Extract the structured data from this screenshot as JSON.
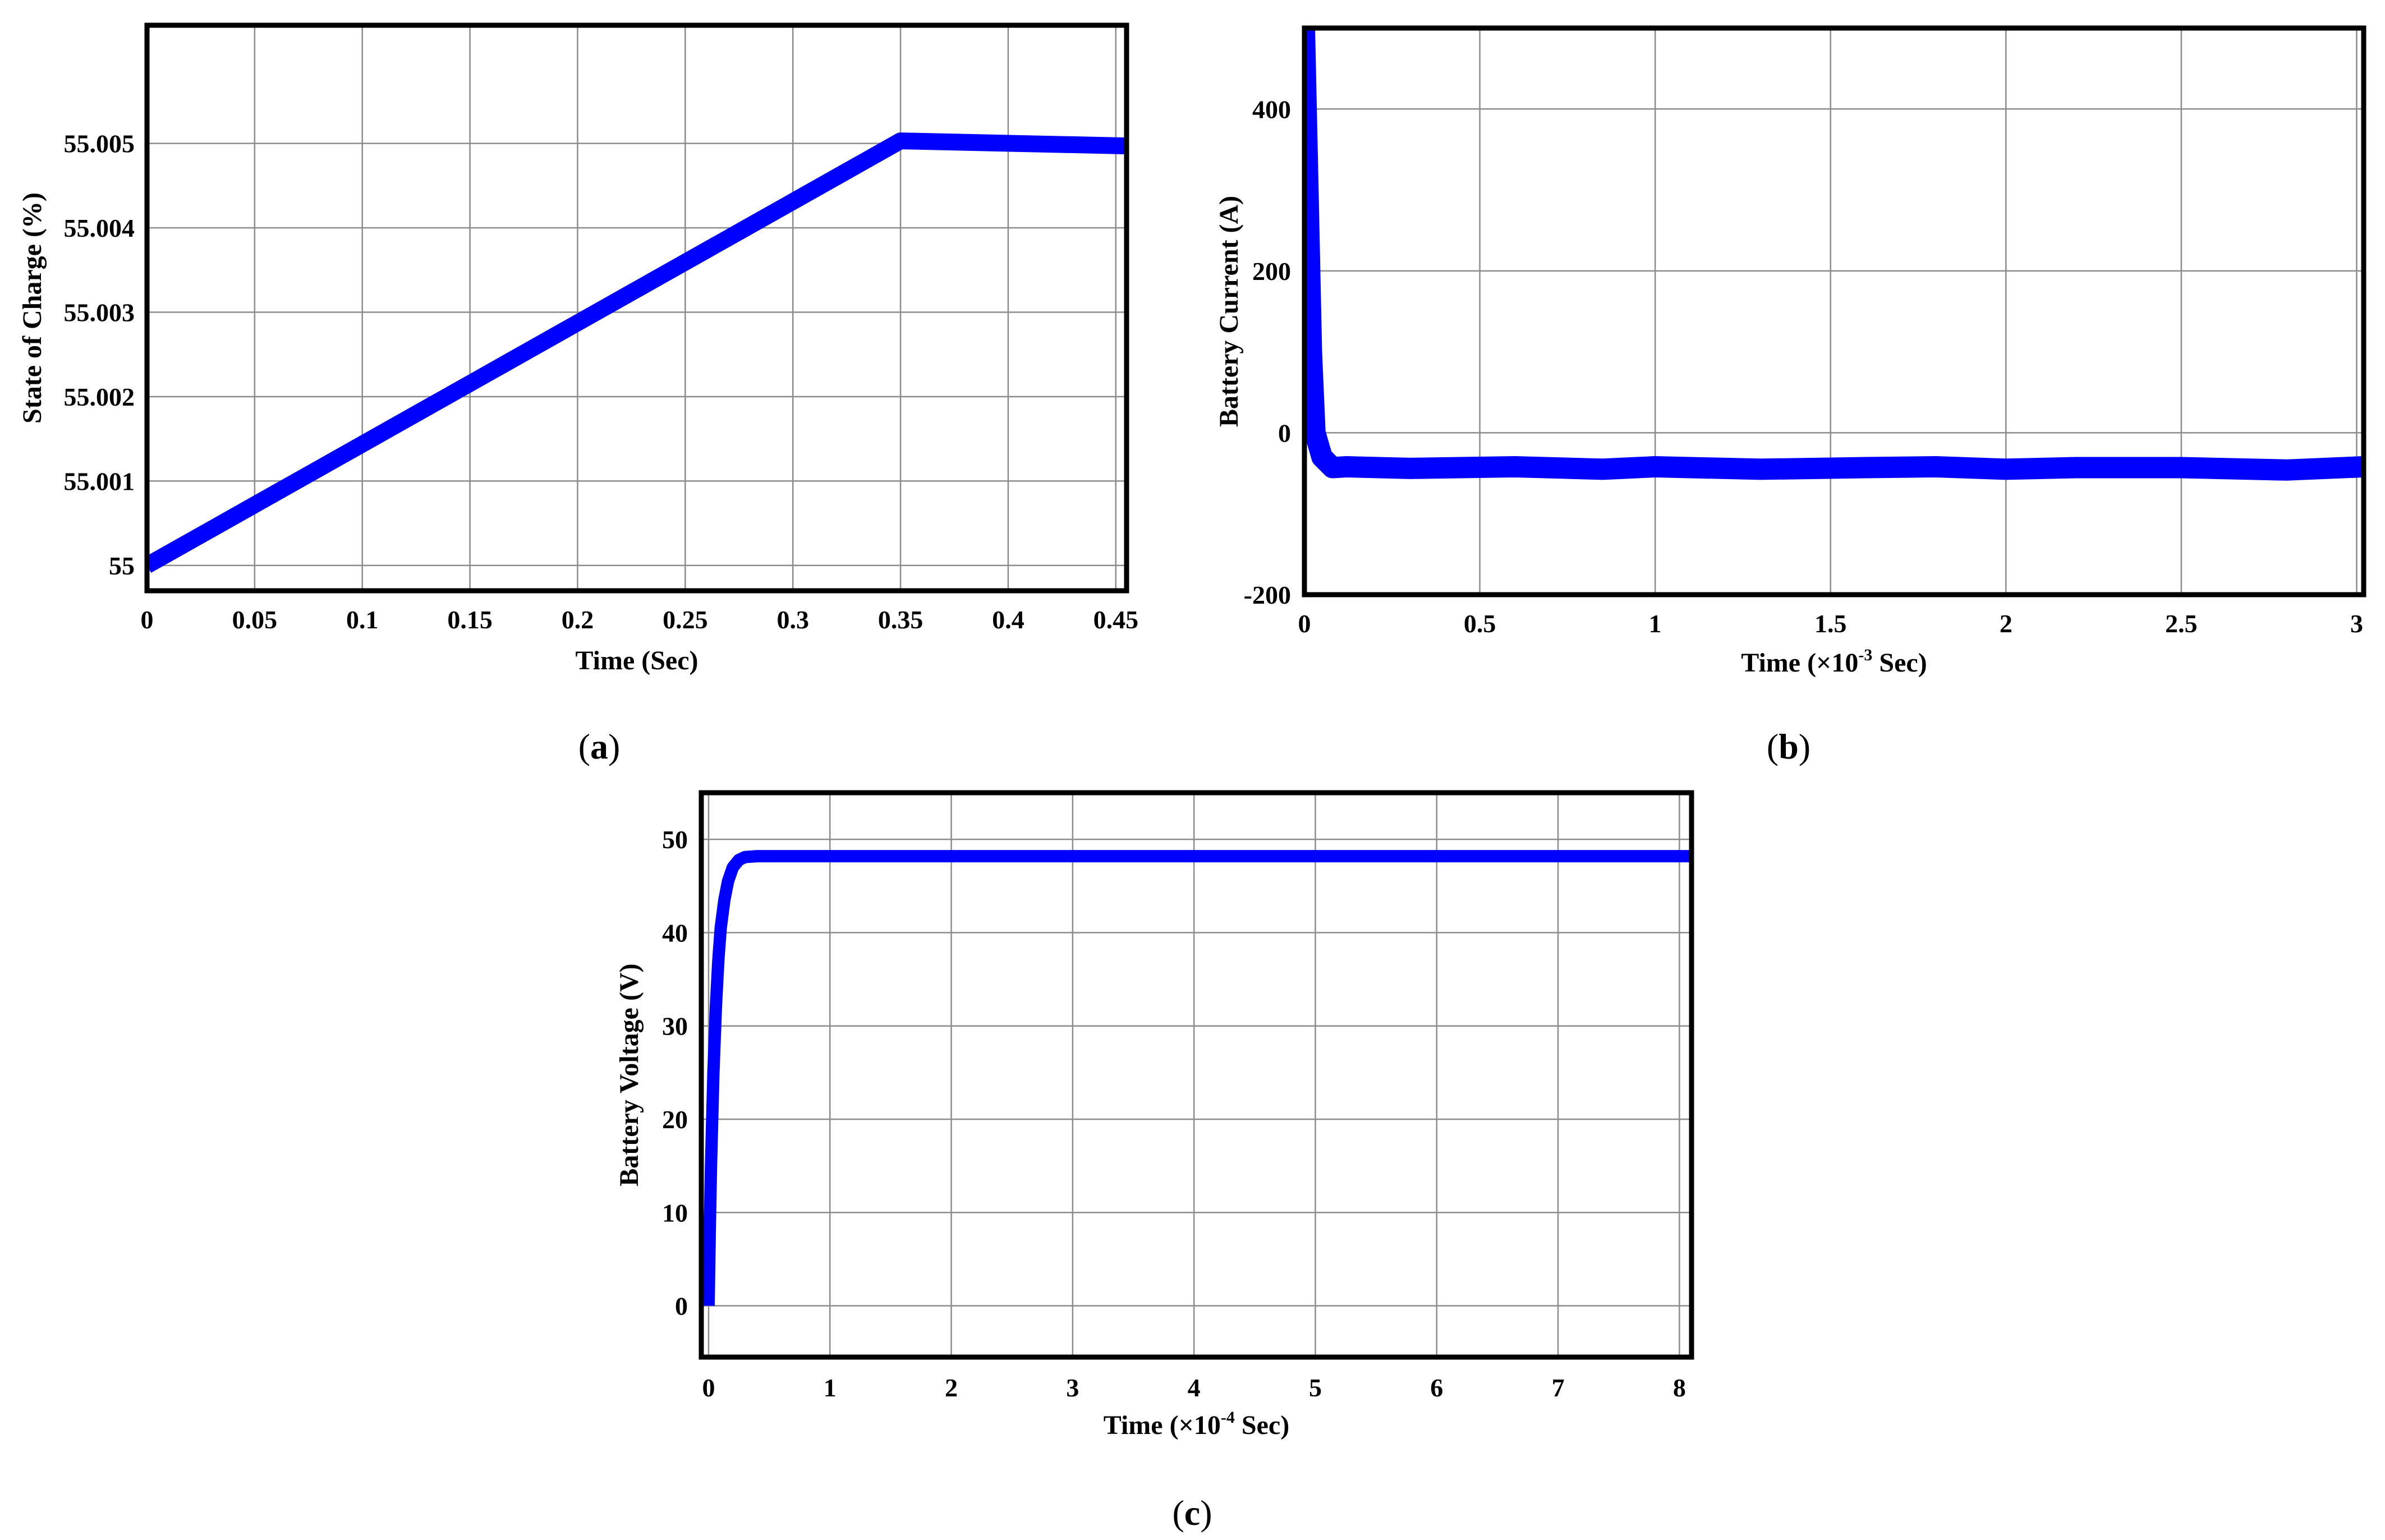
{
  "chart_data": [
    {
      "type": "line",
      "panel_label": "a",
      "xlabel": "Time (Sec)",
      "ylabel": "State of Charge  (%)",
      "xlim": [
        0,
        0.455
      ],
      "ylim": [
        54.9997,
        55.0064
      ],
      "xticks": [
        0,
        0.05,
        0.1,
        0.15,
        0.2,
        0.25,
        0.3,
        0.35,
        0.4,
        0.45
      ],
      "xtick_labels": [
        "0",
        "0.05",
        "0.1",
        "0.15",
        "0.2",
        "0.25",
        "0.3",
        "0.35",
        "0.4",
        "0.45"
      ],
      "yticks": [
        55,
        55.001,
        55.002,
        55.003,
        55.004,
        55.005
      ],
      "ytick_labels": [
        "55",
        "55.001",
        "55.002",
        "55.003",
        "55.004",
        "55.005"
      ],
      "grid": true,
      "color": "#0000ff",
      "series": [
        {
          "x": [
            0,
            0.35,
            0.455
          ],
          "y": [
            55.0,
            55.00503,
            55.00497
          ]
        }
      ]
    },
    {
      "type": "line",
      "panel_label": "b",
      "xlabel": "Time (×10",
      "xlabel_sup": "-3",
      "xlabel_suffix": " Sec)",
      "ylabel": "Battery Current (A)",
      "xlim": [
        0,
        3.02
      ],
      "ylim": [
        -200,
        500
      ],
      "xticks": [
        0,
        0.5,
        1,
        1.5,
        2,
        2.5,
        3
      ],
      "xtick_labels": [
        "0",
        "0.5",
        "1",
        "1.5",
        "2",
        "2.5",
        "3"
      ],
      "yticks": [
        -200,
        0,
        200,
        400
      ],
      "ytick_labels": [
        "-200",
        "0",
        "200",
        "400"
      ],
      "grid": true,
      "color": "#0000ff",
      "series": [
        {
          "x": [
            0,
            0.01,
            0.02,
            0.03,
            0.05,
            0.08,
            0.12,
            0.3,
            0.6,
            0.85,
            1.0,
            1.3,
            1.6,
            1.8,
            2.0,
            2.2,
            2.5,
            2.8,
            3.02
          ],
          "y": [
            500,
            300,
            100,
            0,
            -30,
            -43,
            -42,
            -44,
            -42,
            -45,
            -42,
            -45,
            -43,
            -42,
            -45,
            -43,
            -43,
            -46,
            -42
          ]
        }
      ]
    },
    {
      "type": "line",
      "panel_label": "c",
      "xlabel": "Time (×10",
      "xlabel_sup": "-4",
      "xlabel_suffix": " Sec)",
      "ylabel": "Battery Voltage (V)",
      "xlim": [
        -0.06,
        8.1
      ],
      "ylim": [
        -5.5,
        55
      ],
      "xticks": [
        0,
        1,
        2,
        3,
        4,
        5,
        6,
        7,
        8
      ],
      "xtick_labels": [
        "0",
        "1",
        "2",
        "3",
        "4",
        "5",
        "6",
        "7",
        "8"
      ],
      "yticks": [
        0,
        10,
        20,
        30,
        40,
        50
      ],
      "ytick_labels": [
        "0",
        "10",
        "20",
        "30",
        "40",
        "50"
      ],
      "grid": true,
      "color": "#0000ff",
      "series": [
        {
          "x": [
            0,
            0.01,
            0.02,
            0.04,
            0.06,
            0.08,
            0.1,
            0.13,
            0.16,
            0.2,
            0.25,
            0.3,
            0.4,
            0.6,
            1,
            8.1
          ],
          "y": [
            0,
            8,
            15,
            25,
            32,
            37,
            40.5,
            43.5,
            45.5,
            47,
            47.8,
            48.1,
            48.2,
            48.2,
            48.2,
            48.2
          ]
        }
      ]
    }
  ]
}
